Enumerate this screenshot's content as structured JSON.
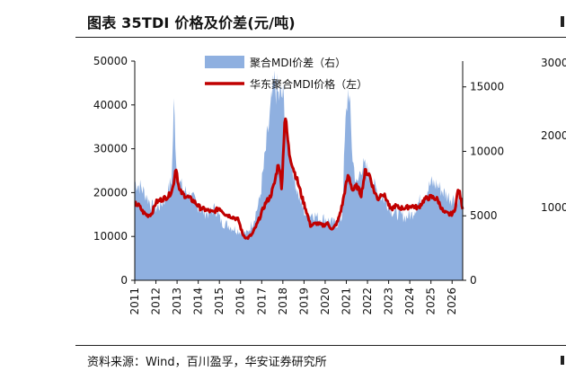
{
  "figure": {
    "title": "图表 35TDI 价格及价差(元/吨)",
    "source": "资料来源：Wind，百川盈孚，华安证券研究所"
  },
  "chart_data": {
    "type": "area",
    "title": "",
    "x_ticks": [
      "2011",
      "2012",
      "2013",
      "2014",
      "2015",
      "2016",
      "2017",
      "2018",
      "2019",
      "2020",
      "2021",
      "2022",
      "2023",
      "2024",
      "2025",
      "2026"
    ],
    "y_left": {
      "min": 0,
      "max": 50000,
      "ticks": [
        0,
        10000,
        20000,
        30000,
        40000,
        50000
      ]
    },
    "y_right": {
      "min": 0,
      "max": 17000,
      "ticks": [
        0,
        5000,
        10000,
        15000
      ]
    },
    "legend": {
      "placement": "top-center"
    },
    "series": [
      {
        "name": "聚合MDI价差（右）",
        "axis": "right",
        "style": "area",
        "color": "#8fb0e0",
        "x": [
          2011.0,
          2011.3,
          2011.6,
          2011.9,
          2012.2,
          2012.5,
          2012.75,
          2012.85,
          2013.0,
          2013.3,
          2013.6,
          2013.9,
          2014.2,
          2014.5,
          2014.8,
          2015.1,
          2015.4,
          2015.7,
          2016.0,
          2016.3,
          2016.6,
          2016.9,
          2017.1,
          2017.3,
          2017.45,
          2017.6,
          2017.8,
          2018.0,
          2018.2,
          2018.4,
          2018.6,
          2018.8,
          2019.1,
          2019.4,
          2019.7,
          2020.0,
          2020.3,
          2020.6,
          2020.8,
          2020.95,
          2021.1,
          2021.3,
          2021.5,
          2021.7,
          2022.0,
          2022.3,
          2022.6,
          2022.9,
          2023.2,
          2023.5,
          2023.8,
          2024.1,
          2024.4,
          2024.7,
          2025.0,
          2025.3,
          2025.6,
          2025.9,
          2026.2,
          2026.4
        ],
        "values": [
          7600,
          7200,
          6400,
          5500,
          5800,
          6500,
          7900,
          13700,
          7900,
          7000,
          6600,
          6000,
          5300,
          5200,
          5600,
          4500,
          4300,
          4000,
          3800,
          3600,
          4600,
          6200,
          8800,
          11500,
          13500,
          15300,
          14200,
          14300,
          11500,
          9200,
          7600,
          6200,
          5000,
          5200,
          4800,
          4800,
          4500,
          4400,
          4900,
          11600,
          15200,
          9400,
          7200,
          8900,
          8500,
          7300,
          6600,
          6100,
          5300,
          5100,
          4900,
          5100,
          6000,
          6600,
          7500,
          7400,
          6800,
          6400,
          6300,
          6600
        ]
      },
      {
        "name": "华东聚合MDI价格（左）",
        "axis": "left",
        "style": "line",
        "color": "#c00000",
        "x": [
          2011.0,
          2011.2,
          2011.4,
          2011.6,
          2011.8,
          2012.0,
          2012.3,
          2012.6,
          2012.8,
          2012.95,
          2013.1,
          2013.3,
          2013.5,
          2013.8,
          2014.1,
          2014.4,
          2014.7,
          2015.0,
          2015.3,
          2015.6,
          2015.9,
          2016.1,
          2016.3,
          2016.55,
          2016.8,
          2017.0,
          2017.2,
          2017.4,
          2017.6,
          2017.8,
          2017.95,
          2018.1,
          2018.3,
          2018.5,
          2018.7,
          2018.9,
          2019.1,
          2019.3,
          2019.6,
          2019.9,
          2020.1,
          2020.35,
          2020.6,
          2020.8,
          2020.95,
          2021.1,
          2021.3,
          2021.5,
          2021.7,
          2021.9,
          2022.1,
          2022.3,
          2022.5,
          2022.7,
          2022.9,
          2023.1,
          2023.3,
          2023.5,
          2023.8,
          2024.1,
          2024.4,
          2024.7,
          2025.0,
          2025.3,
          2025.6,
          2025.9,
          2026.1,
          2026.3,
          2026.5
        ],
        "values": [
          17500,
          17000,
          15500,
          14800,
          15200,
          17800,
          18500,
          19200,
          21000,
          26000,
          20500,
          19500,
          19000,
          18000,
          16500,
          16000,
          15500,
          16500,
          15000,
          14500,
          13800,
          10500,
          9500,
          10500,
          13000,
          15500,
          17800,
          19000,
          22000,
          27000,
          21000,
          38000,
          29000,
          25500,
          22500,
          19000,
          16000,
          12500,
          13000,
          12500,
          13000,
          11500,
          13500,
          17000,
          21000,
          24000,
          20500,
          21500,
          19500,
          25000,
          24000,
          20500,
          18500,
          20000,
          18500,
          16000,
          17000,
          16500,
          16500,
          17000,
          16500,
          18500,
          19000,
          18500,
          15500,
          15000,
          15500,
          21000,
          16500
        ]
      }
    ]
  }
}
